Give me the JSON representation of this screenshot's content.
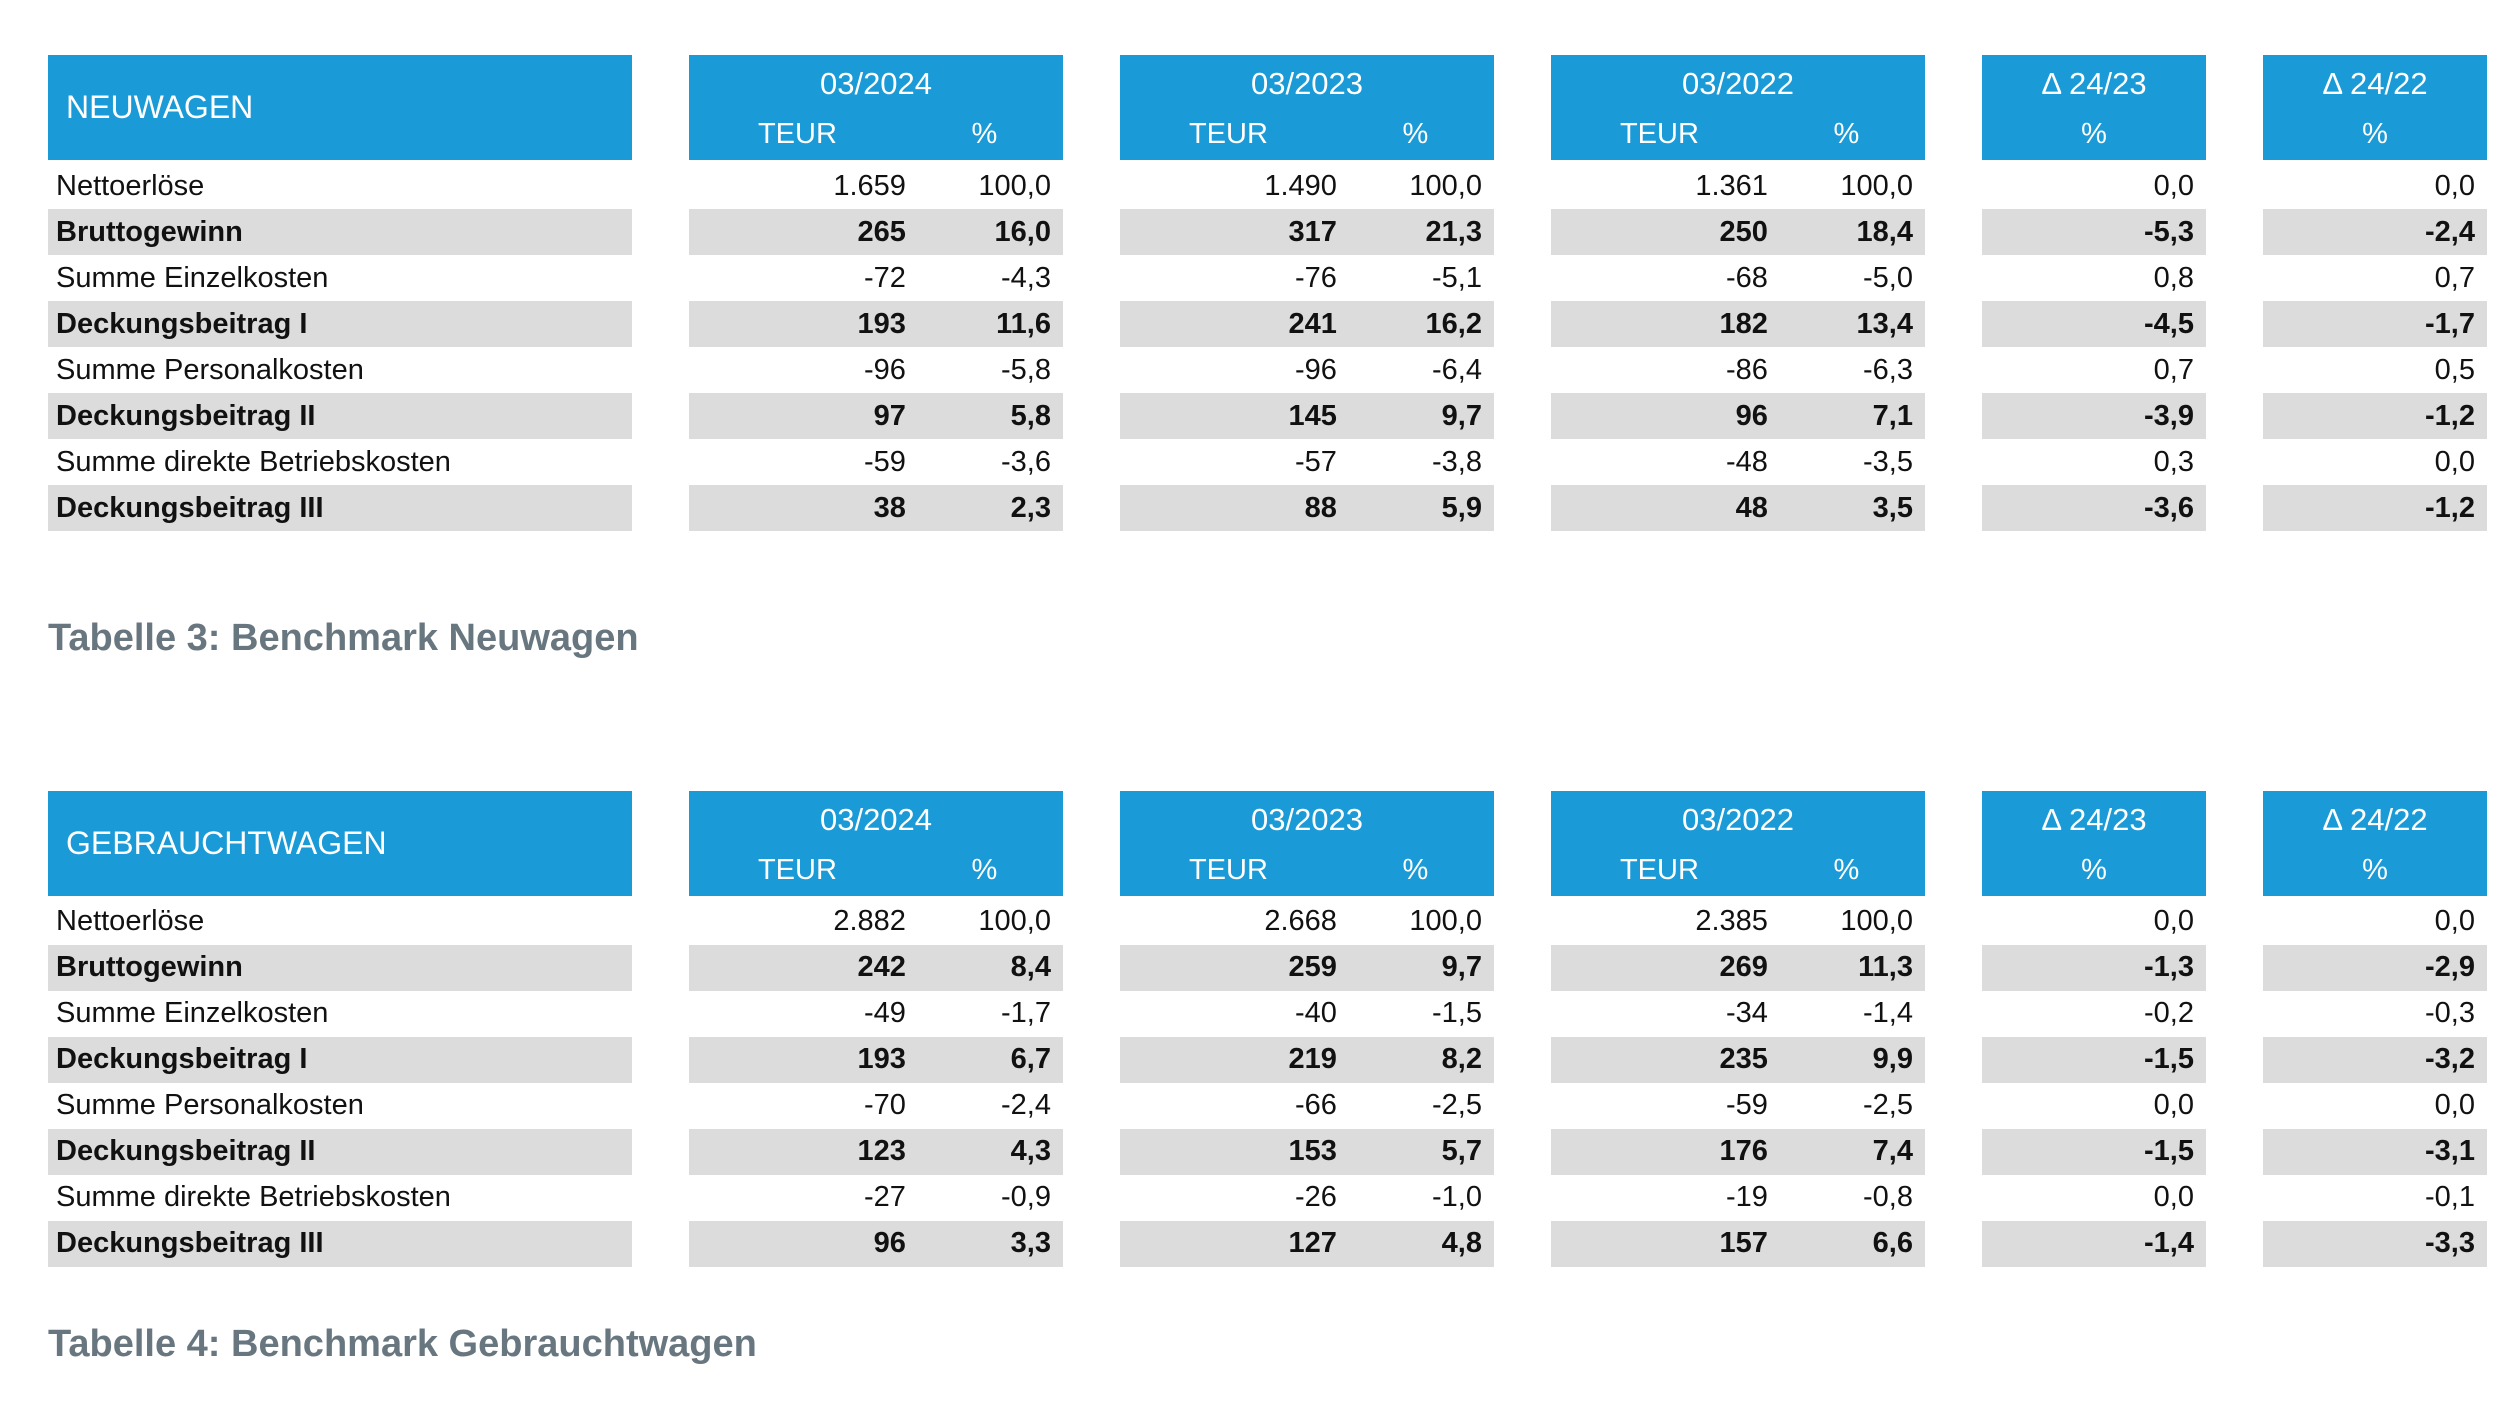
{
  "colors": {
    "header_bg": "#1a9ad6",
    "row_stripe": "#dcdcdc",
    "caption_text": "#68767f"
  },
  "tables": [
    {
      "title": "NEUWAGEN",
      "periods": [
        {
          "label": "03/2024",
          "units": [
            "TEUR",
            "%"
          ]
        },
        {
          "label": "03/2023",
          "units": [
            "TEUR",
            "%"
          ]
        },
        {
          "label": "03/2022",
          "units": [
            "TEUR",
            "%"
          ]
        }
      ],
      "deltas": [
        {
          "label": "Δ 24/23",
          "unit": "%"
        },
        {
          "label": "Δ 24/22",
          "unit": "%"
        }
      ],
      "rows": [
        {
          "label": "Nettoerlöse",
          "emphasis": false,
          "values": [
            "1.659",
            "100,0",
            "1.490",
            "100,0",
            "1.361",
            "100,0",
            "0,0",
            "0,0"
          ]
        },
        {
          "label": "Bruttogewinn",
          "emphasis": true,
          "values": [
            "265",
            "16,0",
            "317",
            "21,3",
            "250",
            "18,4",
            "-5,3",
            "-2,4"
          ]
        },
        {
          "label": "Summe Einzelkosten",
          "emphasis": false,
          "values": [
            "-72",
            "-4,3",
            "-76",
            "-5,1",
            "-68",
            "-5,0",
            "0,8",
            "0,7"
          ]
        },
        {
          "label": "Deckungsbeitrag I",
          "emphasis": true,
          "values": [
            "193",
            "11,6",
            "241",
            "16,2",
            "182",
            "13,4",
            "-4,5",
            "-1,7"
          ]
        },
        {
          "label": "Summe Personalkosten",
          "emphasis": false,
          "values": [
            "-96",
            "-5,8",
            "-96",
            "-6,4",
            "-86",
            "-6,3",
            "0,7",
            "0,5"
          ]
        },
        {
          "label": "Deckungsbeitrag II",
          "emphasis": true,
          "values": [
            "97",
            "5,8",
            "145",
            "9,7",
            "96",
            "7,1",
            "-3,9",
            "-1,2"
          ]
        },
        {
          "label": "Summe direkte Betriebskosten",
          "emphasis": false,
          "values": [
            "-59",
            "-3,6",
            "-57",
            "-3,8",
            "-48",
            "-3,5",
            "0,3",
            "0,0"
          ]
        },
        {
          "label": "Deckungsbeitrag III",
          "emphasis": true,
          "values": [
            "38",
            "2,3",
            "88",
            "5,9",
            "48",
            "3,5",
            "-3,6",
            "-1,2"
          ]
        }
      ],
      "caption": "Tabelle 3: Benchmark Neuwagen"
    },
    {
      "title": "GEBRAUCHTWAGEN",
      "periods": [
        {
          "label": "03/2024",
          "units": [
            "TEUR",
            "%"
          ]
        },
        {
          "label": "03/2023",
          "units": [
            "TEUR",
            "%"
          ]
        },
        {
          "label": "03/2022",
          "units": [
            "TEUR",
            "%"
          ]
        }
      ],
      "deltas": [
        {
          "label": "Δ 24/23",
          "unit": "%"
        },
        {
          "label": "Δ 24/22",
          "unit": "%"
        }
      ],
      "rows": [
        {
          "label": "Nettoerlöse",
          "emphasis": false,
          "values": [
            "2.882",
            "100,0",
            "2.668",
            "100,0",
            "2.385",
            "100,0",
            "0,0",
            "0,0"
          ]
        },
        {
          "label": "Bruttogewinn",
          "emphasis": true,
          "values": [
            "242",
            "8,4",
            "259",
            "9,7",
            "269",
            "11,3",
            "-1,3",
            "-2,9"
          ]
        },
        {
          "label": "Summe Einzelkosten",
          "emphasis": false,
          "values": [
            "-49",
            "-1,7",
            "-40",
            "-1,5",
            "-34",
            "-1,4",
            "-0,2",
            "-0,3"
          ]
        },
        {
          "label": "Deckungsbeitrag I",
          "emphasis": true,
          "values": [
            "193",
            "6,7",
            "219",
            "8,2",
            "235",
            "9,9",
            "-1,5",
            "-3,2"
          ]
        },
        {
          "label": "Summe Personalkosten",
          "emphasis": false,
          "values": [
            "-70",
            "-2,4",
            "-66",
            "-2,5",
            "-59",
            "-2,5",
            "0,0",
            "0,0"
          ]
        },
        {
          "label": "Deckungsbeitrag II",
          "emphasis": true,
          "values": [
            "123",
            "4,3",
            "153",
            "5,7",
            "176",
            "7,4",
            "-1,5",
            "-3,1"
          ]
        },
        {
          "label": "Summe direkte Betriebskosten",
          "emphasis": false,
          "values": [
            "-27",
            "-0,9",
            "-26",
            "-1,0",
            "-19",
            "-0,8",
            "0,0",
            "-0,1"
          ]
        },
        {
          "label": "Deckungsbeitrag III",
          "emphasis": true,
          "values": [
            "96",
            "3,3",
            "127",
            "4,8",
            "157",
            "6,6",
            "-1,4",
            "-3,3"
          ]
        }
      ],
      "caption": "Tabelle 4: Benchmark Gebrauchtwagen"
    }
  ]
}
